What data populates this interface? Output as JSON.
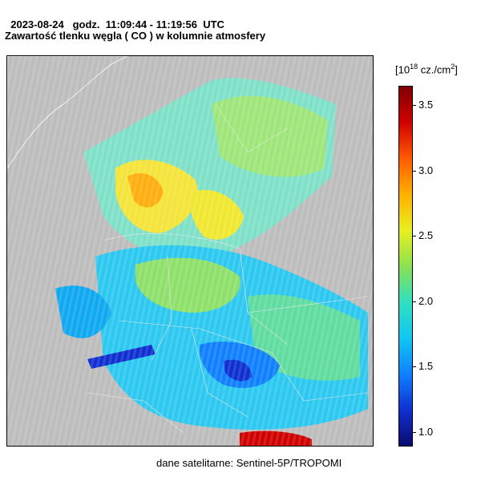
{
  "header": {
    "date": "2023-08-24",
    "time_prefix": "godz.",
    "time_range": "11:09:44 - 11:19:56",
    "time_zone": "UTC",
    "title": "Zawartość tlenku węgla ( CO ) w kolumnie atmosfery"
  },
  "colorbar": {
    "unit_open": "[10",
    "unit_exp": "18",
    "unit_mid": " cz./cm",
    "unit_sq": "2",
    "unit_close": "]",
    "min": 0.9,
    "max": 3.65,
    "ticks": [
      "3.5",
      "3.0",
      "2.5",
      "2.0",
      "1.5",
      "1.0"
    ],
    "colors": [
      "#0a0a6e",
      "#1030d0",
      "#1080ff",
      "#10c8f0",
      "#30e0c0",
      "#8ce050",
      "#e8f020",
      "#ffb000",
      "#ff5a00",
      "#d00000",
      "#800000"
    ]
  },
  "source": "dane satelitarne: Sentinel-5P/TROPOMI"
}
